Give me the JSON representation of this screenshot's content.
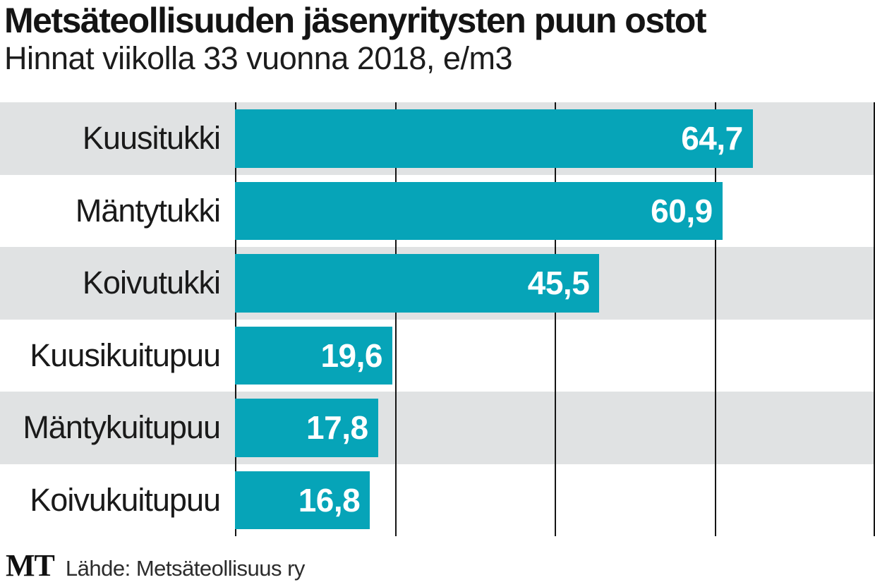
{
  "header": {
    "title": "Metsäteollisuuden jäsenyritysten puun ostot",
    "subtitle": "Hinnat viikolla 33 vuonna 2018, e/m3"
  },
  "footer": {
    "logo_text": "MT",
    "source_label": "Lähde: Metsäteollisuus ry"
  },
  "chart_data": {
    "type": "bar",
    "orientation": "horizontal",
    "title": "Metsäteollisuuden jäsenyritysten puun ostot",
    "subtitle": "Hinnat viikolla 33 vuonna 2018, e/m3",
    "unit": "e/m3",
    "categories": [
      "Kuusitukki",
      "Mäntytukki",
      "Koivutukki",
      "Kuusikuitupuu",
      "Mäntykuitupuu",
      "Koivukuitupuu"
    ],
    "values": [
      64.7,
      60.9,
      45.5,
      19.6,
      17.8,
      16.8
    ],
    "value_labels": [
      "64,7",
      "60,9",
      "45,5",
      "19,6",
      "17,8",
      "16,8"
    ],
    "xlim": [
      0,
      80
    ],
    "grid_step": 20,
    "grid_on": true,
    "legend": "none",
    "source": "Lähde: Metsäteollisuus ry",
    "colors": {
      "bar": "#06a4b8",
      "band_odd": "#e0e2e3",
      "band_even": "#ffffff",
      "gridline": "#151515",
      "value_text": "#ffffff",
      "label_text": "#1a1a1a"
    }
  }
}
